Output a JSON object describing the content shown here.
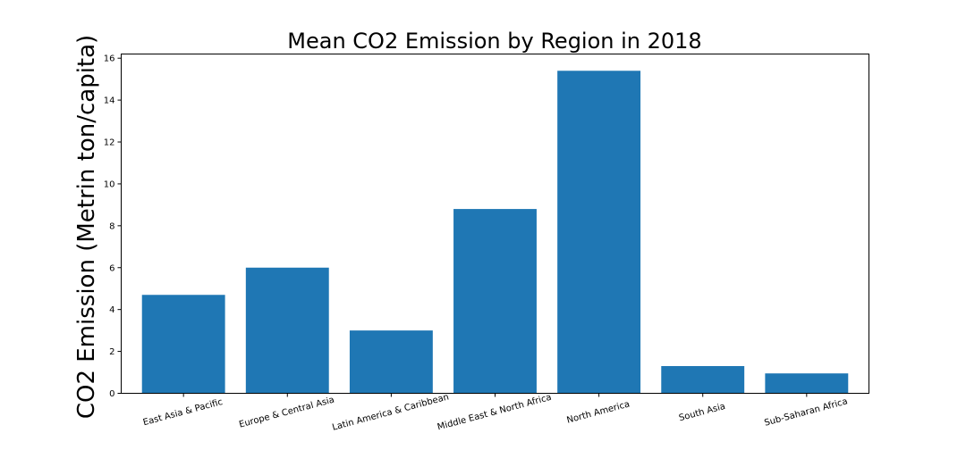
{
  "chart_data": {
    "type": "bar",
    "title": "Mean CO2 Emission by Region in 2018",
    "xlabel": "",
    "ylabel": "CO2 Emission (Metrin ton/capita)",
    "categories": [
      "East Asia & Pacific",
      "Europe & Central Asia",
      "Latin America & Caribbean",
      "Middle East & North Africa",
      "North America",
      "South Asia",
      "Sub-Saharan Africa"
    ],
    "values": [
      4.7,
      6.0,
      3.0,
      8.8,
      15.4,
      1.3,
      0.95
    ],
    "ylim": [
      0,
      16.2
    ],
    "yticks": [
      "0",
      "2",
      "4",
      "6",
      "8",
      "10",
      "12",
      "14",
      "16"
    ],
    "bar_color": "#1f77b4",
    "grid": false,
    "legend": "none"
  }
}
